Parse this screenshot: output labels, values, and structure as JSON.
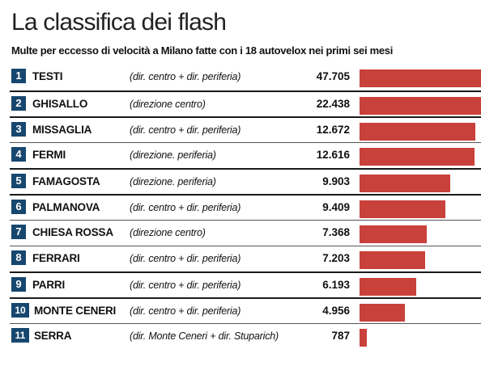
{
  "title": "La classifica dei flash",
  "subtitle": "Multe per eccesso di velocità a Milano fatte con i 18 autovelox nei primi sei mesi",
  "colors": {
    "bar": "#c8413a",
    "rank_badge": "#17476e"
  },
  "chart_data": {
    "type": "bar",
    "orientation": "horizontal",
    "title": "La classifica dei flash",
    "subtitle": "Multe per eccesso di velocità a Milano fatte con i 18 autovelox nei primi sei mesi",
    "xlim": [
      0,
      13300
    ],
    "rows": [
      {
        "rank": "1",
        "name": "TESTI",
        "direction": "(dir. centro + dir. periferia)",
        "value_label": "47.705",
        "value": 47705
      },
      {
        "rank": "2",
        "name": "GHISALLO",
        "direction": "(direzione centro)",
        "value_label": "22.438",
        "value": 22438
      },
      {
        "rank": "3",
        "name": "MISSAGLIA",
        "direction": "(dir. centro + dir. periferia)",
        "value_label": "12.672",
        "value": 12672
      },
      {
        "rank": "4",
        "name": "FERMI",
        "direction": "(direzione. periferia)",
        "value_label": "12.616",
        "value": 12616
      },
      {
        "rank": "5",
        "name": "FAMAGOSTA",
        "direction": "(direzione. periferia)",
        "value_label": "9.903",
        "value": 9903
      },
      {
        "rank": "6",
        "name": "PALMANOVA",
        "direction": "(dir. centro + dir. periferia)",
        "value_label": "9.409",
        "value": 9409
      },
      {
        "rank": "7",
        "name": "CHIESA ROSSA",
        "direction": "(direzione centro)",
        "value_label": "7.368",
        "value": 7368
      },
      {
        "rank": "8",
        "name": "FERRARI",
        "direction": "(dir. centro + dir. periferia)",
        "value_label": "7.203",
        "value": 7203
      },
      {
        "rank": "9",
        "name": "PARRI",
        "direction": "(dir. centro + dir. periferia)",
        "value_label": "6.193",
        "value": 6193
      },
      {
        "rank": "10",
        "name": "MONTE CENERI",
        "direction": "(dir. centro + dir. periferia)",
        "value_label": "4.956",
        "value": 4956
      },
      {
        "rank": "11",
        "name": "SERRA",
        "direction": "(dir. Monte Ceneri + dir. Stuparich)",
        "value_label": "787",
        "value": 787
      }
    ]
  }
}
